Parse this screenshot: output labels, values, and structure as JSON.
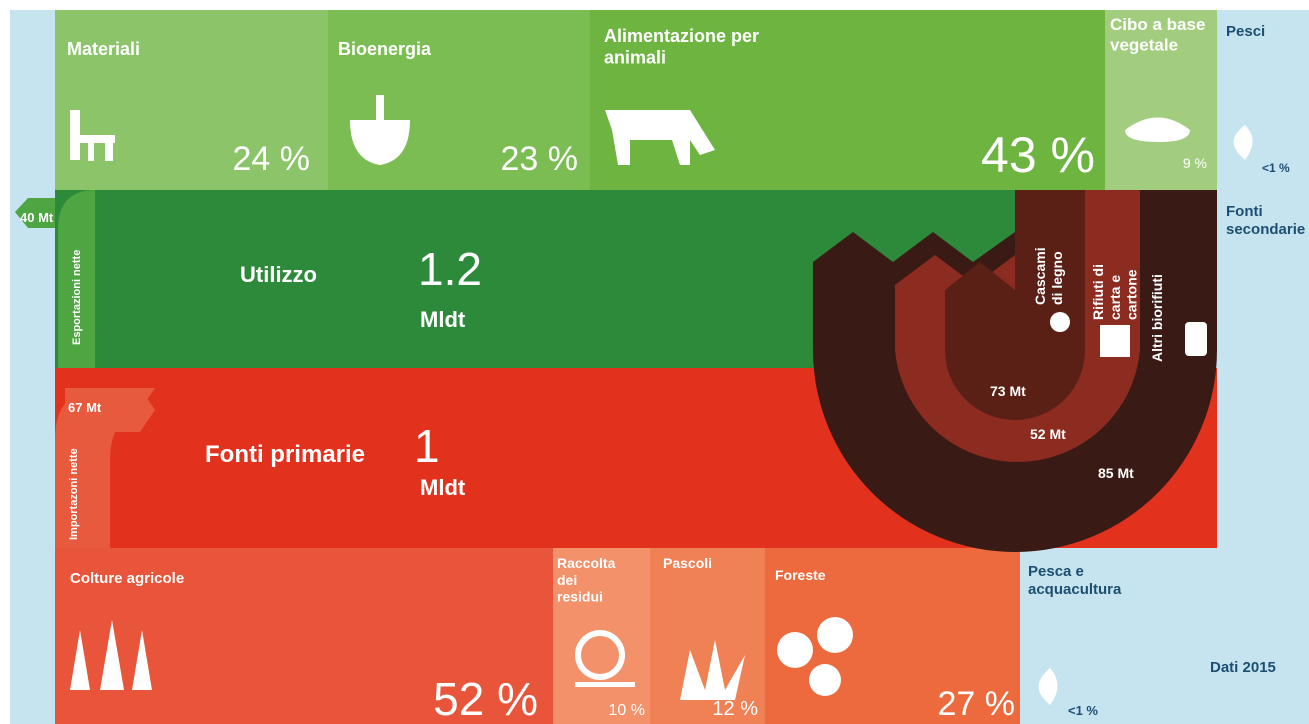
{
  "uses": [
    {
      "label": "Materiali",
      "share": "24 %"
    },
    {
      "label": "Bioenergia",
      "share": "23 %"
    },
    {
      "label": "Alimentazione per animali",
      "share": "43 %"
    },
    {
      "label": "Cibo a base vegetale",
      "share": "9 %"
    }
  ],
  "fish_use": {
    "label": "Pesci",
    "share": "<1 %"
  },
  "secondary": {
    "label": "Fonti secondarie",
    "items": [
      {
        "label": "Cascami di legno",
        "amount": "73 Mt"
      },
      {
        "label": "Rifiuti di carta e cartone",
        "amount": "52 Mt"
      },
      {
        "label": "Altri biorifiuti",
        "amount": "85 Mt"
      }
    ]
  },
  "utilization": {
    "label": "Utilizzo",
    "amount": "1.2",
    "unit": "Mldt"
  },
  "exports": {
    "label": "Esportazioni nette",
    "amount": "40 Mt"
  },
  "primary": {
    "label": "Fonti primarie",
    "amount": "1",
    "unit": "Mldt"
  },
  "imports": {
    "label": "Importazoni nette",
    "amount": "67 Mt"
  },
  "sources": [
    {
      "label": "Colture agricole",
      "share": "52 %"
    },
    {
      "label": "Raccolta dei residui",
      "share": "10 %"
    },
    {
      "label": "Pascoli",
      "share": "12 %"
    },
    {
      "label": "Foreste",
      "share": "27 %"
    }
  ],
  "fishing": {
    "label": "Pesca e acquacultura",
    "share": "<1 %"
  },
  "note": "Dati 2015"
}
